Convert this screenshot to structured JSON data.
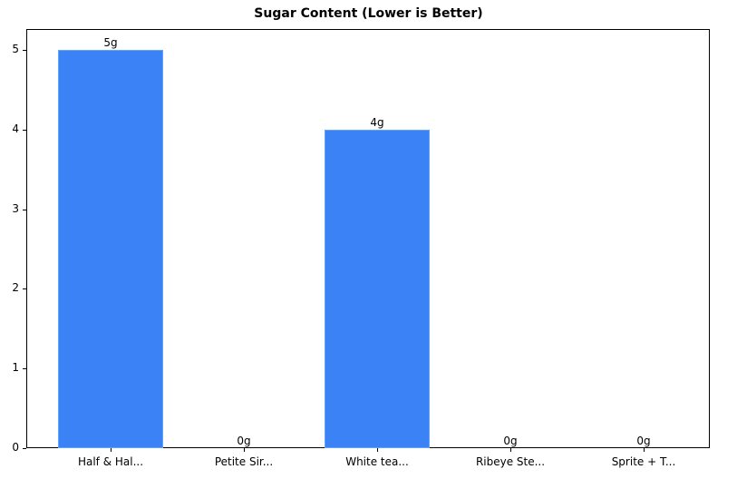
{
  "chart_data": {
    "type": "bar",
    "title": "Sugar Content (Lower is Better)",
    "xlabel": "",
    "ylabel": "",
    "categories": [
      "Half & Hal...",
      "Petite Sir...",
      "White tea...",
      "Ribeye Ste...",
      "Sprite + T..."
    ],
    "values": [
      5,
      0,
      4,
      0,
      0
    ],
    "data_labels": [
      "5g",
      "0g",
      "4g",
      "0g",
      "0g"
    ],
    "ylim": [
      0,
      5.25
    ],
    "yticks": [
      0,
      1,
      2,
      3,
      4,
      5
    ],
    "grid": false,
    "legend": null,
    "bar_color": "#3b82f6"
  }
}
